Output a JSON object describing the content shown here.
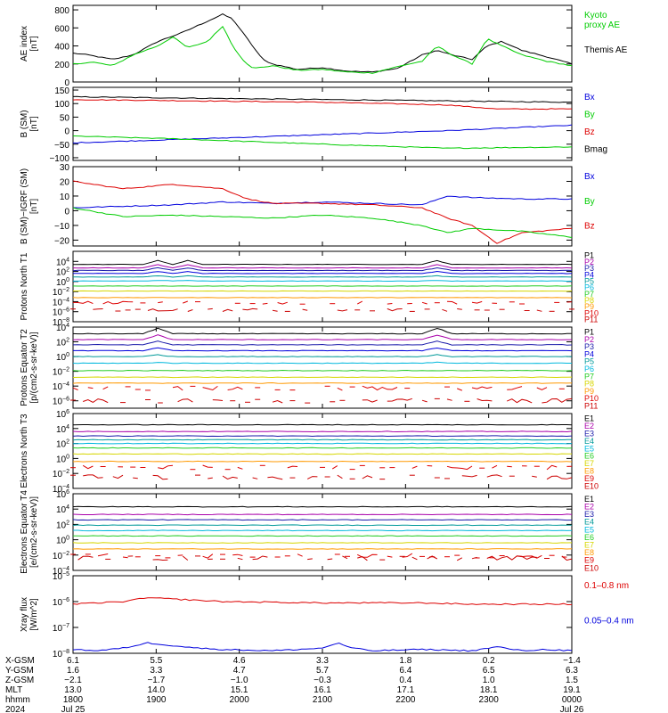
{
  "colors": {
    "black": "#000000",
    "red": "#dd0000",
    "green": "#00cc00",
    "blue": "#0000dd",
    "purple": "#aa00aa",
    "navy": "#1a1aaa",
    "teal": "#009999",
    "cyan": "#00b8dd",
    "ltgreen": "#22cc22",
    "yellow": "#d6d600",
    "orange": "#ff9900",
    "darkred": "#cc0000"
  },
  "chart_data": [
    {
      "type": "line",
      "ylabel": "AE index [nT]",
      "ylim": [
        0,
        850
      ],
      "yticks": [
        0,
        200,
        400,
        600,
        800
      ],
      "tick_labels": [
        "0",
        "200",
        "400",
        "600",
        "800"
      ],
      "log": false,
      "legend": [
        {
          "text": "Kyoto\nproxy AE",
          "color": "green"
        },
        {
          "text": "Themis AE",
          "color": "black"
        }
      ],
      "series": [
        {
          "name": "Themis AE",
          "color": "black",
          "x": [
            0,
            0.03,
            0.08,
            0.12,
            0.17,
            0.22,
            0.26,
            0.3,
            0.32,
            0.34,
            0.36,
            0.38,
            0.4,
            0.45,
            0.5,
            0.55,
            0.6,
            0.65,
            0.7,
            0.73,
            0.76,
            0.8,
            0.83,
            0.86,
            0.9,
            0.95,
            1.0
          ],
          "y": [
            320,
            300,
            250,
            300,
            450,
            550,
            650,
            750,
            700,
            550,
            400,
            250,
            200,
            140,
            160,
            120,
            110,
            150,
            300,
            350,
            300,
            250,
            400,
            450,
            350,
            280,
            200
          ]
        },
        {
          "name": "Kyoto proxy AE",
          "color": "green",
          "x": [
            0,
            0.04,
            0.08,
            0.12,
            0.17,
            0.2,
            0.23,
            0.27,
            0.3,
            0.32,
            0.34,
            0.36,
            0.4,
            0.45,
            0.5,
            0.55,
            0.6,
            0.65,
            0.7,
            0.73,
            0.76,
            0.8,
            0.83,
            0.86,
            0.9,
            0.95,
            1.0
          ],
          "y": [
            200,
            220,
            180,
            300,
            400,
            500,
            380,
            450,
            620,
            400,
            250,
            150,
            180,
            130,
            140,
            110,
            100,
            170,
            230,
            400,
            300,
            200,
            480,
            400,
            300,
            230,
            180
          ]
        }
      ]
    },
    {
      "type": "line",
      "ylabel": "B (SM) [nT]",
      "ylim": [
        -110,
        160
      ],
      "yticks": [
        -100,
        -50,
        0,
        50,
        100,
        150
      ],
      "tick_labels": [
        "−100",
        "−50",
        "0",
        "50",
        "100",
        "150"
      ],
      "log": false,
      "legend": [
        {
          "text": "Bx",
          "color": "blue"
        },
        {
          "text": "By",
          "color": "green"
        },
        {
          "text": "Bz",
          "color": "red"
        },
        {
          "text": "Bmag",
          "color": "black"
        }
      ],
      "series": [
        {
          "name": "Bmag",
          "color": "black",
          "x": [
            0,
            0.25,
            0.5,
            0.75,
            0.85,
            1.0
          ],
          "y": [
            125,
            120,
            115,
            110,
            108,
            105
          ]
        },
        {
          "name": "Bz",
          "color": "red",
          "x": [
            0,
            0.25,
            0.5,
            0.75,
            0.85,
            1.0
          ],
          "y": [
            115,
            110,
            105,
            95,
            80,
            80
          ]
        },
        {
          "name": "Bx",
          "color": "blue",
          "x": [
            0,
            0.25,
            0.5,
            0.75,
            1.0
          ],
          "y": [
            -45,
            -30,
            -15,
            0,
            20
          ]
        },
        {
          "name": "By",
          "color": "green",
          "x": [
            0,
            0.2,
            0.5,
            0.75,
            1.0
          ],
          "y": [
            -20,
            -30,
            -50,
            -65,
            -60
          ]
        }
      ]
    },
    {
      "type": "line",
      "ylabel": "B (SM)−IGRF (SM) [nT]",
      "ylim": [
        -24,
        30
      ],
      "yticks": [
        -20,
        -10,
        0,
        10,
        20,
        30
      ],
      "tick_labels": [
        "−20",
        "−10",
        "0",
        "10",
        "20",
        "30"
      ],
      "log": false,
      "legend": [
        {
          "text": "Bx",
          "color": "blue"
        },
        {
          "text": "By",
          "color": "green"
        },
        {
          "text": "Bz",
          "color": "red"
        }
      ],
      "series": [
        {
          "name": "Bx",
          "color": "blue",
          "x": [
            0,
            0.1,
            0.2,
            0.3,
            0.4,
            0.5,
            0.6,
            0.7,
            0.75,
            0.8,
            0.9,
            1.0
          ],
          "y": [
            2,
            3,
            4,
            6,
            5,
            6,
            5,
            4,
            10,
            9,
            8,
            8
          ]
        },
        {
          "name": "Bz",
          "color": "red",
          "x": [
            0,
            0.1,
            0.2,
            0.3,
            0.35,
            0.4,
            0.5,
            0.6,
            0.7,
            0.75,
            0.8,
            0.85,
            0.9,
            1.0
          ],
          "y": [
            20,
            15,
            18,
            15,
            8,
            5,
            5,
            4,
            2,
            -5,
            -10,
            -22,
            -15,
            -12
          ]
        },
        {
          "name": "By",
          "color": "green",
          "x": [
            0,
            0.1,
            0.2,
            0.3,
            0.4,
            0.5,
            0.6,
            0.7,
            0.75,
            0.8,
            0.9,
            1.0
          ],
          "y": [
            2,
            -4,
            -3,
            -4,
            -5,
            -3,
            -5,
            -10,
            -15,
            -12,
            -14,
            -18
          ]
        }
      ]
    },
    {
      "type": "line",
      "ylabel": "Protons North T1",
      "log": true,
      "ylim_exp": [
        -8,
        6
      ],
      "tick_exps": [
        4,
        2,
        0,
        -2,
        -4,
        -6,
        -8
      ],
      "legend": [
        {
          "text": "P1",
          "color": "black"
        },
        {
          "text": "P2",
          "color": "purple"
        },
        {
          "text": "P3",
          "color": "navy"
        },
        {
          "text": "P4",
          "color": "blue"
        },
        {
          "text": "P5",
          "color": "teal"
        },
        {
          "text": "P6",
          "color": "cyan"
        },
        {
          "text": "P7",
          "color": "ltgreen"
        },
        {
          "text": "P8",
          "color": "yellow"
        },
        {
          "text": "P9",
          "color": "orange"
        },
        {
          "text": "P10",
          "color": "red"
        },
        {
          "text": "P11",
          "color": "darkred"
        }
      ],
      "series_exp": [
        3.4,
        2.7,
        2.2,
        1.6,
        0.9,
        0.1,
        -0.9,
        -1.9,
        -3.2,
        -4.2,
        -5.7
      ],
      "bump_x": [
        0.17,
        0.23,
        0.73
      ]
    },
    {
      "type": "line",
      "ylabel": "Protons Equator T2 [p/(cm2-s-sr-keV)]",
      "log": true,
      "ylim_exp": [
        -7,
        4
      ],
      "tick_exps": [
        4,
        2,
        0,
        -2,
        -4,
        -6
      ],
      "legend": [
        {
          "text": "P1",
          "color": "black"
        },
        {
          "text": "P2",
          "color": "purple"
        },
        {
          "text": "P3",
          "color": "navy"
        },
        {
          "text": "P4",
          "color": "blue"
        },
        {
          "text": "P5",
          "color": "teal"
        },
        {
          "text": "P6",
          "color": "cyan"
        },
        {
          "text": "P7",
          "color": "ltgreen"
        },
        {
          "text": "P8",
          "color": "yellow"
        },
        {
          "text": "P9",
          "color": "orange"
        },
        {
          "text": "P10",
          "color": "red"
        },
        {
          "text": "P11",
          "color": "darkred"
        }
      ],
      "series_exp": [
        3.1,
        2.3,
        1.6,
        0.8,
        0.0,
        -0.9,
        -1.9,
        -2.8,
        -3.6,
        -4.3,
        -6.0
      ],
      "bump_x": [
        0.17,
        0.73
      ]
    },
    {
      "type": "line",
      "ylabel": "Electrons North T3",
      "log": true,
      "ylim_exp": [
        -4,
        6
      ],
      "tick_exps": [
        6,
        4,
        2,
        0,
        -2,
        -4
      ],
      "legend": [
        {
          "text": "E1",
          "color": "black"
        },
        {
          "text": "E2",
          "color": "purple"
        },
        {
          "text": "E3",
          "color": "navy"
        },
        {
          "text": "E4",
          "color": "teal"
        },
        {
          "text": "E5",
          "color": "cyan"
        },
        {
          "text": "E6",
          "color": "ltgreen"
        },
        {
          "text": "E7",
          "color": "yellow"
        },
        {
          "text": "E8",
          "color": "orange"
        },
        {
          "text": "E9",
          "color": "red"
        },
        {
          "text": "E10",
          "color": "darkred"
        }
      ],
      "series_exp": [
        4.5,
        3.6,
        3.0,
        2.5,
        2.0,
        1.4,
        0.6,
        -0.4,
        -1.2,
        -2.5
      ],
      "bump_x": []
    },
    {
      "type": "line",
      "ylabel": "Electrons Equator T4 [e/(cm2-s-sr-keV)]",
      "log": true,
      "ylim_exp": [
        -4,
        6
      ],
      "tick_exps": [
        6,
        4,
        2,
        0,
        -2,
        -4
      ],
      "legend": [
        {
          "text": "E1",
          "color": "black"
        },
        {
          "text": "E2",
          "color": "purple"
        },
        {
          "text": "E3",
          "color": "navy"
        },
        {
          "text": "E4",
          "color": "teal"
        },
        {
          "text": "E5",
          "color": "cyan"
        },
        {
          "text": "E6",
          "color": "ltgreen"
        },
        {
          "text": "E7",
          "color": "yellow"
        },
        {
          "text": "E8",
          "color": "orange"
        },
        {
          "text": "E9",
          "color": "red"
        },
        {
          "text": "E10",
          "color": "darkred"
        }
      ],
      "series_exp": [
        4.3,
        3.3,
        2.6,
        1.9,
        1.2,
        0.5,
        -0.4,
        -1.2,
        -2.1,
        -2.4
      ],
      "bump_x": []
    },
    {
      "type": "line",
      "ylabel": "Xray flux [W/m^2]",
      "log": true,
      "ylim_exp": [
        -8,
        -5
      ],
      "tick_exps": [
        -5,
        -6,
        -7,
        -8
      ],
      "legend": [
        {
          "text": "0.1–0.8 nm",
          "color": "red"
        },
        {
          "text": "0.05–0.4 nm",
          "color": "blue"
        }
      ],
      "series": [
        {
          "name": "0.1–0.8 nm",
          "color": "red",
          "x": [
            0,
            0.1,
            0.15,
            0.2,
            0.3,
            0.5,
            0.7,
            0.8,
            0.9,
            1.0
          ],
          "y_exp": [
            -6.1,
            -6.0,
            -5.85,
            -5.9,
            -6.0,
            -6.05,
            -6.05,
            -6.1,
            -6.1,
            -6.1
          ]
        },
        {
          "name": "0.05–0.4 nm",
          "color": "blue",
          "x": [
            0,
            0.05,
            0.1,
            0.15,
            0.2,
            0.25,
            0.3,
            0.4,
            0.5,
            0.53,
            0.56,
            0.6,
            0.7,
            0.8,
            0.85,
            0.9,
            0.95,
            1.0
          ],
          "y_exp": [
            -7.85,
            -7.9,
            -7.8,
            -7.6,
            -7.7,
            -7.8,
            -7.85,
            -7.9,
            -7.8,
            -7.6,
            -7.8,
            -7.9,
            -7.85,
            -7.9,
            -7.75,
            -7.9,
            -7.85,
            -7.9
          ]
        }
      ]
    }
  ],
  "footer": {
    "row_labels": [
      "X-GSM",
      "Y-GSM",
      "Z-GSM",
      "MLT",
      "hhmm",
      "2024"
    ],
    "columns": [
      {
        "values": [
          "6.1",
          "1.6",
          "−2.1",
          "13.0",
          "1800",
          "Jul 25"
        ]
      },
      {
        "values": [
          "5.5",
          "3.3",
          "−1.7",
          "14.0",
          "1900",
          ""
        ]
      },
      {
        "values": [
          "4.6",
          "4.7",
          "−1.0",
          "15.1",
          "2000",
          ""
        ]
      },
      {
        "values": [
          "3.3",
          "5.7",
          "−0.3",
          "16.1",
          "2100",
          ""
        ]
      },
      {
        "values": [
          "1.8",
          "6.4",
          "0.4",
          "17.1",
          "2200",
          ""
        ]
      },
      {
        "values": [
          "0.2",
          "6.5",
          "1.0",
          "18.1",
          "2300",
          ""
        ]
      },
      {
        "values": [
          "−1.4",
          "6.3",
          "1.5",
          "19.1",
          "0000",
          "Jul 26"
        ]
      }
    ]
  }
}
